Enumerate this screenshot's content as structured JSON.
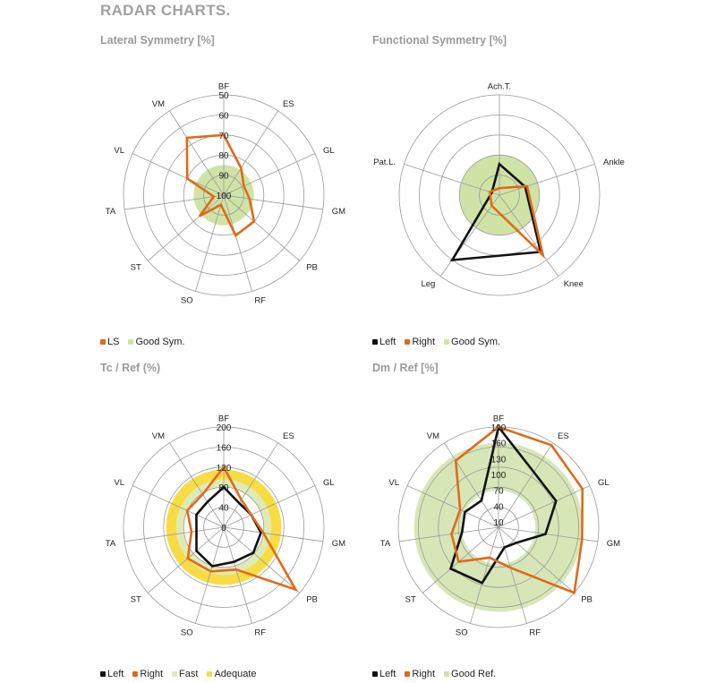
{
  "page": {
    "title": "RADAR CHARTS."
  },
  "chart_data": [
    {
      "id": "lateral",
      "type": "radar",
      "title": "Lateral Symmetry [%]",
      "axes": [
        "BF",
        "ES",
        "GL",
        "GM",
        "PB",
        "RF",
        "SO",
        "ST",
        "TA",
        "VL",
        "VM"
      ],
      "scale": {
        "center": 100,
        "outer": 50,
        "ticks": [
          50,
          60,
          70,
          80,
          90,
          100
        ]
      },
      "bands": [
        {
          "name": "Good Sym.",
          "from": 100,
          "to": 85,
          "color": "#cfe3a6",
          "hole": false
        }
      ],
      "series": [
        {
          "name": "LS",
          "color": "#e06a1a",
          "values": [
            70,
            84,
            89,
            87,
            80,
            79,
            95,
            84,
            95,
            80,
            66
          ]
        }
      ],
      "legend": [
        {
          "label": "LS",
          "color": "#e06a1a"
        },
        {
          "label": "Good Sym.",
          "color": "#cfe3a6"
        }
      ]
    },
    {
      "id": "functional",
      "type": "radar",
      "title": "Functional Symmetry [%]",
      "axes": [
        "Ach.T.",
        "Ankle",
        "Knee",
        "Leg",
        "Pat.L."
      ],
      "scale": {
        "center": 0,
        "outer": 100,
        "ticks": []
      },
      "bands": [
        {
          "name": "Good Sym.",
          "from": 0,
          "to": 40,
          "color": "#cfe3a6",
          "hole": false
        }
      ],
      "series": [
        {
          "name": "Left",
          "color": "#111111",
          "values": [
            31,
            27,
            70,
            80,
            8
          ]
        },
        {
          "name": "Right",
          "color": "#e06a1a",
          "values": [
            7,
            29,
            74,
            13,
            10
          ]
        }
      ],
      "legend": [
        {
          "label": "Left",
          "color": "#111111"
        },
        {
          "label": "Right",
          "color": "#e06a1a"
        },
        {
          "label": "Good Sym.",
          "color": "#cfe3a6"
        }
      ]
    },
    {
      "id": "tc",
      "type": "radar",
      "title": "Tc / Ref (%)",
      "axes": [
        "BF",
        "ES",
        "GL",
        "GM",
        "PB",
        "RF",
        "SO",
        "ST",
        "TA",
        "VL",
        "VM"
      ],
      "scale": {
        "center": 0,
        "outer": 200,
        "ticks": [
          0,
          40,
          80,
          120,
          160,
          200
        ]
      },
      "bands": [
        {
          "name": "Adequate",
          "from": 95,
          "to": 115,
          "color": "#f7dc45",
          "hole": true
        },
        {
          "name": "Fast",
          "from": 80,
          "to": 95,
          "color": "#dfeab5",
          "hole": true
        }
      ],
      "series": [
        {
          "name": "Left",
          "color": "#111111",
          "values": [
            80,
            57,
            60,
            75,
            78,
            72,
            81,
            72,
            55,
            60,
            60
          ]
        },
        {
          "name": "Right",
          "color": "#e06a1a",
          "values": [
            120,
            65,
            60,
            80,
            190,
            88,
            92,
            95,
            65,
            80,
            78
          ]
        }
      ],
      "legend": [
        {
          "label": "Left",
          "color": "#111111"
        },
        {
          "label": "Right",
          "color": "#e06a1a"
        },
        {
          "label": "Fast",
          "color": "#dfeab5"
        },
        {
          "label": "Adequate",
          "color": "#f7dc45"
        }
      ]
    },
    {
      "id": "dm",
      "type": "radar",
      "title": "Dm / Ref [%]",
      "axes": [
        "BF",
        "ES",
        "GL",
        "GM",
        "PB",
        "RF",
        "SO",
        "ST",
        "TA",
        "VL",
        "VM"
      ],
      "scale": {
        "center": 0,
        "outer": 190,
        "ticks": [
          10,
          40,
          70,
          100,
          130,
          160,
          190
        ]
      },
      "bands": [
        {
          "name": "Good Ref.",
          "from": 70,
          "to": 160,
          "color": "#d7e6b6",
          "hole": true
        }
      ],
      "series": [
        {
          "name": "Left",
          "color": "#111111",
          "values": [
            190,
            124,
            120,
            90,
            45,
            40,
            110,
            120,
            70,
            70,
            60
          ]
        },
        {
          "name": "Right",
          "color": "#e06a1a",
          "values": [
            190,
            185,
            175,
            160,
            190,
            80,
            60,
            100,
            90,
            80,
            150
          ]
        }
      ],
      "legend": [
        {
          "label": "Left",
          "color": "#111111"
        },
        {
          "label": "Right",
          "color": "#e06a1a"
        },
        {
          "label": "Good Ref.",
          "color": "#cfe3a6"
        }
      ]
    }
  ]
}
